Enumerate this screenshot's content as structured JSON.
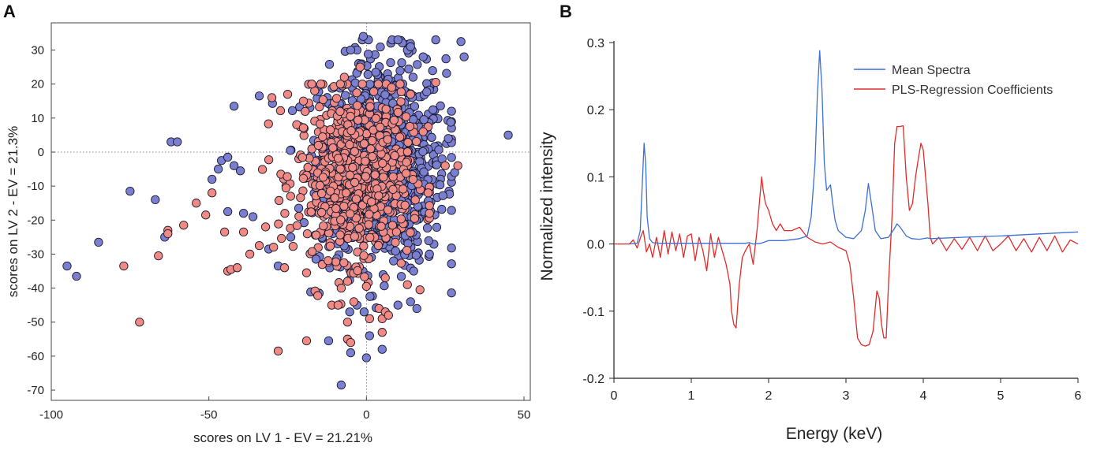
{
  "panels": {
    "a_label": "A",
    "b_label": "B"
  },
  "chart_data": [
    {
      "type": "scatter",
      "panel": "A",
      "title": "",
      "xlabel": "scores on LV 1 - EV = 21.21%",
      "ylabel": "scores on LV 2 - EV = 21.3%",
      "xlim": [
        -100,
        52
      ],
      "ylim": [
        -73,
        38
      ],
      "xticks": [
        -100,
        -50,
        0,
        50
      ],
      "yticks": [
        30,
        20,
        10,
        0,
        -10,
        -20,
        -30,
        -40,
        -50,
        -60,
        -70
      ],
      "reference_lines": {
        "x": 0,
        "y": 0,
        "style": "dotted"
      },
      "colors": {
        "blue_fill": "#7b7fd0",
        "red_fill": "#ef8a85",
        "edge": "#1a1a2e"
      },
      "series": [
        {
          "name": "blue",
          "color": "#7b7fd0",
          "cluster": {
            "n": 900,
            "cx": 5,
            "cy": -3,
            "sx": 10,
            "sy": 15,
            "xmin": -40,
            "xmax": 27,
            "ymin": -47,
            "ymax": 33
          },
          "points": [
            [
              -95,
              -33.5
            ],
            [
              -92,
              -36.5
            ],
            [
              -85,
              -26.5
            ],
            [
              -75,
              -11.5
            ],
            [
              -67,
              -14
            ],
            [
              -62,
              3
            ],
            [
              -49,
              -8
            ],
            [
              -47,
              -5
            ],
            [
              -46,
              -2.5
            ],
            [
              -44,
              -1.5
            ],
            [
              -44,
              -17.5
            ],
            [
              -42,
              -4
            ],
            [
              -42,
              13.5
            ],
            [
              -40,
              -5.5
            ],
            [
              -39,
              -18
            ],
            [
              -36,
              -19
            ],
            [
              -34,
              16.5
            ],
            [
              -31,
              -28.5
            ],
            [
              -28,
              -33.5
            ],
            [
              -24,
              -25
            ],
            [
              -16,
              -31.5
            ],
            [
              -15,
              -41.5
            ],
            [
              -12,
              -55.5
            ],
            [
              -8,
              -68.5
            ],
            [
              -5,
              -59
            ],
            [
              -3,
              -45
            ],
            [
              0,
              -60.5
            ],
            [
              1,
              -54
            ],
            [
              5,
              -58
            ],
            [
              10,
              -45
            ],
            [
              14,
              -44
            ],
            [
              16,
              -46
            ],
            [
              45,
              5
            ],
            [
              30,
              32.5
            ],
            [
              31,
              28
            ],
            [
              22,
              33
            ],
            [
              10,
              33
            ],
            [
              -1,
              34
            ],
            [
              -3,
              30
            ],
            [
              -5,
              30
            ],
            [
              13,
              30
            ],
            [
              14,
              31
            ],
            [
              18,
              28
            ],
            [
              26,
              4
            ],
            [
              24,
              -2
            ],
            [
              28,
              -6
            ],
            [
              20,
              -30
            ],
            [
              15,
              -35
            ],
            [
              -60,
              3
            ],
            [
              -64,
              -25
            ]
          ]
        },
        {
          "name": "red",
          "color": "#ef8a85",
          "cluster": {
            "n": 700,
            "cx": -4,
            "cy": -7,
            "sx": 9,
            "sy": 12,
            "xmin": -33,
            "xmax": 20,
            "ymin": -45,
            "ymax": 20
          },
          "points": [
            [
              -77,
              -33.5
            ],
            [
              -72,
              -50
            ],
            [
              -66,
              -30.5
            ],
            [
              -63,
              -23
            ],
            [
              -63,
              -24
            ],
            [
              -58,
              -21.5
            ],
            [
              -54,
              -15
            ],
            [
              -51,
              -18.5
            ],
            [
              -49,
              -12
            ],
            [
              -45,
              -23.5
            ],
            [
              -44,
              -35
            ],
            [
              -43,
              -34.5
            ],
            [
              -41,
              -34
            ],
            [
              -39,
              -23.5
            ],
            [
              -37,
              -30
            ],
            [
              -34,
              -27.5
            ],
            [
              -32,
              -22
            ],
            [
              -30,
              16
            ],
            [
              -28,
              -58.5
            ],
            [
              -26,
              -34
            ],
            [
              -19,
              -35.5
            ],
            [
              -19,
              -55.5
            ],
            [
              -11,
              -45
            ],
            [
              -9,
              -45
            ],
            [
              -8,
              -40
            ],
            [
              -6,
              -38
            ],
            [
              -6,
              -50
            ],
            [
              -6,
              -55
            ],
            [
              -5,
              -56
            ],
            [
              -4,
              -44
            ],
            [
              0,
              -39.5
            ],
            [
              1,
              -49
            ],
            [
              4,
              -46
            ],
            [
              5,
              -49
            ],
            [
              5,
              -53
            ],
            [
              6,
              -47
            ],
            [
              7,
              -48
            ],
            [
              13,
              -39
            ],
            [
              17,
              -40.5
            ],
            [
              20,
              -18
            ],
            [
              22,
              20.5
            ],
            [
              25,
              -4
            ],
            [
              29,
              -4
            ],
            [
              14,
              17
            ],
            [
              8,
              19
            ],
            [
              -2,
              25
            ],
            [
              -7,
              22
            ],
            [
              -25,
              17
            ],
            [
              -20,
              15
            ],
            [
              18,
              6
            ]
          ]
        }
      ]
    },
    {
      "type": "line",
      "panel": "B",
      "title": "",
      "xlabel": "Energy (keV)",
      "ylabel": "Normalized intensity",
      "xlim": [
        0,
        6
      ],
      "ylim": [
        -0.2,
        0.3
      ],
      "xticks": [
        0,
        1,
        2,
        3,
        4,
        5,
        6
      ],
      "yticks": [
        0.3,
        0.2,
        0.1,
        0.0,
        -0.1,
        -0.2
      ],
      "ytick_labels": [
        "0.3",
        "0.2",
        "0.1",
        "0.0",
        "-0.1",
        "-0.2"
      ],
      "legend": {
        "position": "top-right",
        "entries": [
          "Mean Spectra",
          "PLS-Regression Coefficients"
        ]
      },
      "series": [
        {
          "name": "Mean Spectra",
          "color": "#3b6fd6",
          "x": [
            0.2,
            0.3,
            0.34,
            0.37,
            0.39,
            0.41,
            0.43,
            0.46,
            0.5,
            0.6,
            0.8,
            1.0,
            1.5,
            1.6,
            1.7,
            1.75,
            1.8,
            1.9,
            2.0,
            2.2,
            2.4,
            2.5,
            2.55,
            2.6,
            2.63,
            2.66,
            2.69,
            2.72,
            2.75,
            2.8,
            2.83,
            2.86,
            2.9,
            3.0,
            3.1,
            3.2,
            3.25,
            3.29,
            3.33,
            3.38,
            3.45,
            3.55,
            3.62,
            3.66,
            3.7,
            3.78,
            3.85,
            3.95,
            4.05,
            4.1,
            4.5,
            5.0,
            5.5,
            6.0
          ],
          "y": [
            0.0,
            0.001,
            0.02,
            0.1,
            0.15,
            0.12,
            0.04,
            0.008,
            0.002,
            0.001,
            0.001,
            0.001,
            0.001,
            0.001,
            0.001,
            0.002,
            0.0,
            0.001,
            0.005,
            0.005,
            0.008,
            0.012,
            0.04,
            0.12,
            0.22,
            0.288,
            0.23,
            0.12,
            0.08,
            0.088,
            0.06,
            0.035,
            0.02,
            0.01,
            0.008,
            0.02,
            0.05,
            0.09,
            0.06,
            0.02,
            0.008,
            0.01,
            0.022,
            0.03,
            0.025,
            0.012,
            0.008,
            0.007,
            0.009,
            0.008,
            0.01,
            0.012,
            0.015,
            0.018
          ]
        },
        {
          "name": "PLS-Regression Coefficients",
          "color": "#e02b2b",
          "x": [
            0.0,
            0.2,
            0.25,
            0.3,
            0.35,
            0.38,
            0.42,
            0.46,
            0.5,
            0.55,
            0.6,
            0.65,
            0.7,
            0.75,
            0.8,
            0.85,
            0.9,
            0.95,
            1.0,
            1.05,
            1.1,
            1.15,
            1.2,
            1.25,
            1.3,
            1.35,
            1.4,
            1.45,
            1.5,
            1.52,
            1.55,
            1.58,
            1.62,
            1.66,
            1.7,
            1.75,
            1.8,
            1.85,
            1.88,
            1.91,
            1.93,
            1.96,
            2.0,
            2.05,
            2.1,
            2.15,
            2.2,
            2.3,
            2.4,
            2.5,
            2.6,
            2.7,
            2.8,
            2.9,
            3.0,
            3.05,
            3.1,
            3.15,
            3.2,
            3.25,
            3.3,
            3.35,
            3.4,
            3.43,
            3.46,
            3.49,
            3.52,
            3.55,
            3.6,
            3.63,
            3.66,
            3.7,
            3.74,
            3.78,
            3.82,
            3.86,
            3.9,
            3.94,
            3.97,
            4.0,
            4.03,
            4.06,
            4.09,
            4.12,
            4.2,
            4.3,
            4.4,
            4.5,
            4.6,
            4.7,
            4.8,
            4.9,
            5.0,
            5.1,
            5.2,
            5.3,
            5.4,
            5.5,
            5.6,
            5.7,
            5.8,
            5.9,
            6.0
          ],
          "y": [
            0.0,
            0.0,
            0.006,
            -0.006,
            0.012,
            0.02,
            -0.012,
            0.0,
            -0.02,
            0.01,
            -0.02,
            0.02,
            -0.015,
            0.018,
            -0.01,
            0.015,
            -0.02,
            0.012,
            0.015,
            -0.025,
            0.01,
            -0.01,
            -0.04,
            0.015,
            -0.02,
            0.01,
            -0.01,
            -0.03,
            -0.06,
            -0.1,
            -0.12,
            -0.125,
            -0.06,
            -0.02,
            -0.01,
            0.0,
            -0.03,
            0.02,
            0.06,
            0.1,
            0.08,
            0.06,
            0.05,
            0.03,
            0.02,
            0.03,
            0.02,
            0.02,
            0.025,
            0.01,
            0.003,
            0.0,
            0.003,
            -0.005,
            -0.01,
            -0.03,
            -0.08,
            -0.14,
            -0.15,
            -0.152,
            -0.15,
            -0.13,
            -0.07,
            -0.08,
            -0.12,
            -0.14,
            -0.14,
            -0.06,
            0.05,
            0.15,
            0.175,
            0.175,
            0.176,
            0.1,
            0.05,
            0.06,
            0.1,
            0.13,
            0.15,
            0.14,
            0.1,
            0.06,
            0.01,
            0.0,
            0.01,
            -0.01,
            0.008,
            -0.008,
            0.01,
            -0.01,
            0.012,
            -0.01,
            0.0,
            0.012,
            -0.01,
            0.008,
            -0.012,
            0.01,
            -0.01,
            0.012,
            -0.012,
            0.006,
            0.0
          ]
        }
      ]
    }
  ]
}
